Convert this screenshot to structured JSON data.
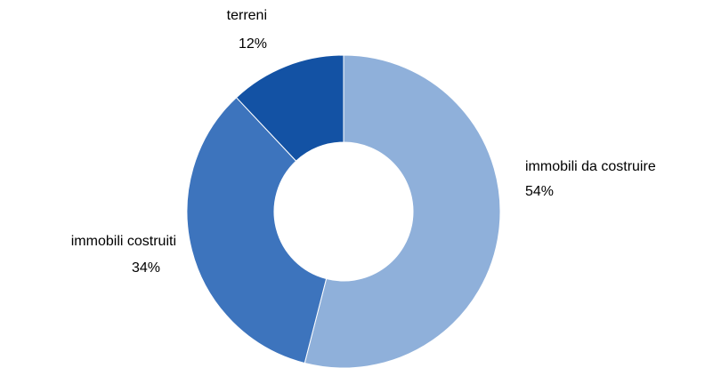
{
  "chart_data": {
    "type": "pie",
    "categories": [
      "immobili da costruire",
      "immobili costruiti",
      "terreni"
    ],
    "values": [
      54,
      34,
      12
    ],
    "value_labels": [
      "54%",
      "34%",
      "12%"
    ],
    "colors": [
      "#8fb0da",
      "#3d74bd",
      "#1352a4"
    ],
    "donut": true
  }
}
